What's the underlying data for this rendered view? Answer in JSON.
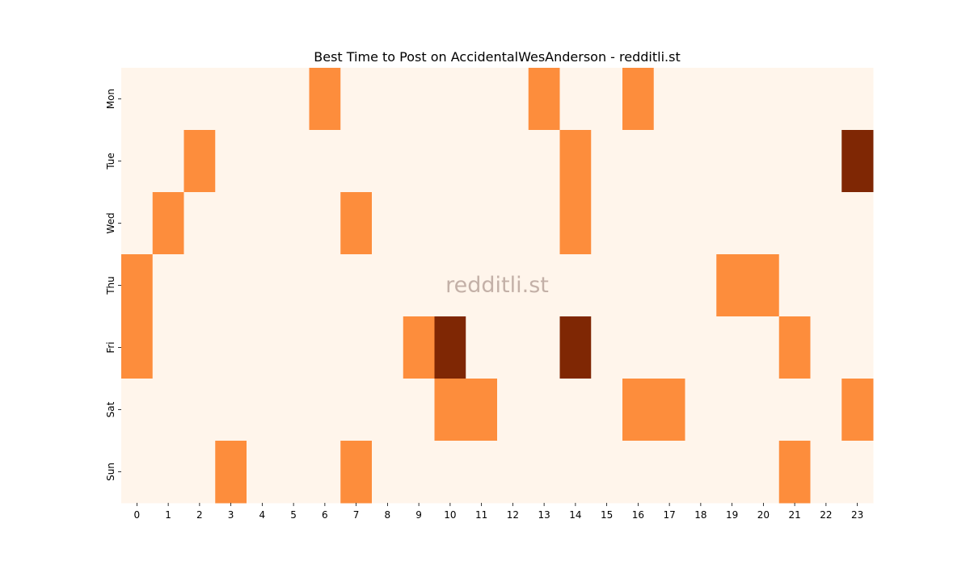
{
  "chart_data": {
    "type": "heatmap",
    "title": "Best Time to Post on AccidentalWesAnderson - redditli.st",
    "watermark": "redditli.st",
    "xlabel": "",
    "ylabel": "",
    "x_categories": [
      "0",
      "1",
      "2",
      "3",
      "4",
      "5",
      "6",
      "7",
      "8",
      "9",
      "10",
      "11",
      "12",
      "13",
      "14",
      "15",
      "16",
      "17",
      "18",
      "19",
      "20",
      "21",
      "22",
      "23"
    ],
    "y_categories": [
      "Mon",
      "Tue",
      "Wed",
      "Thu",
      "Fri",
      "Sat",
      "Sun"
    ],
    "values": [
      [
        0,
        0,
        0,
        0,
        0,
        0,
        1,
        0,
        0,
        0,
        0,
        0,
        0,
        1,
        0,
        0,
        1,
        0,
        0,
        0,
        0,
        0,
        0,
        0
      ],
      [
        0,
        0,
        1,
        0,
        0,
        0,
        0,
        0,
        0,
        0,
        0,
        0,
        0,
        0,
        1,
        0,
        0,
        0,
        0,
        0,
        0,
        0,
        0,
        2
      ],
      [
        0,
        1,
        0,
        0,
        0,
        0,
        0,
        1,
        0,
        0,
        0,
        0,
        0,
        0,
        1,
        0,
        0,
        0,
        0,
        0,
        0,
        0,
        0,
        0
      ],
      [
        1,
        0,
        0,
        0,
        0,
        0,
        0,
        0,
        0,
        0,
        0,
        0,
        0,
        0,
        0,
        0,
        0,
        0,
        0,
        1,
        1,
        0,
        0,
        0
      ],
      [
        1,
        0,
        0,
        0,
        0,
        0,
        0,
        0,
        0,
        1,
        2,
        0,
        0,
        0,
        2,
        0,
        0,
        0,
        0,
        0,
        0,
        1,
        0,
        0
      ],
      [
        0,
        0,
        0,
        0,
        0,
        0,
        0,
        0,
        0,
        0,
        1,
        1,
        0,
        0,
        0,
        0,
        1,
        1,
        0,
        0,
        0,
        0,
        0,
        1
      ],
      [
        0,
        0,
        0,
        1,
        0,
        0,
        0,
        1,
        0,
        0,
        0,
        0,
        0,
        0,
        0,
        0,
        0,
        0,
        0,
        0,
        0,
        1,
        0,
        0
      ]
    ],
    "colors": {
      "0": "#fff5eb",
      "1": "#fd8d3c",
      "2": "#7f2704"
    },
    "colormap": "Oranges",
    "grid": false,
    "legend": "none"
  }
}
